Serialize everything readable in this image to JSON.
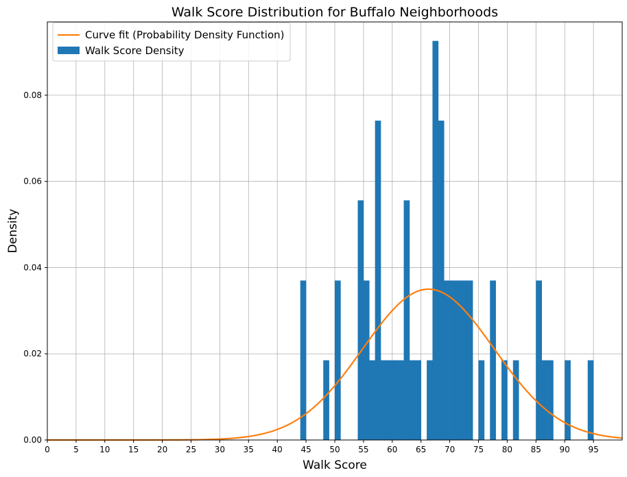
{
  "chart_data": {
    "type": "bar",
    "title": "Walk Score Distribution for Buffalo Neighborhoods",
    "xlabel": "Walk Score",
    "ylabel": "Density",
    "xlim": [
      0,
      100
    ],
    "ylim": [
      0,
      0.097
    ],
    "x_ticks": [
      0,
      5,
      10,
      15,
      20,
      25,
      30,
      35,
      40,
      45,
      50,
      55,
      60,
      65,
      70,
      75,
      80,
      85,
      90,
      95
    ],
    "y_ticks": [
      0.0,
      0.02,
      0.04,
      0.06,
      0.08
    ],
    "y_tick_labels": [
      "0.00",
      "0.02",
      "0.04",
      "0.06",
      "0.08"
    ],
    "grid": true,
    "legend_position": "top-left",
    "colors": {
      "bars": "#1f77b4",
      "curve": "#ff7f0e",
      "grid": "#b0b0b0"
    },
    "series": [
      {
        "name": "Walk Score Density",
        "kind": "histogram",
        "bin_width": 1,
        "bins": [
          {
            "x": 44,
            "density": 0.037
          },
          {
            "x": 48,
            "density": 0.0185
          },
          {
            "x": 50,
            "density": 0.037
          },
          {
            "x": 54,
            "density": 0.0556
          },
          {
            "x": 55,
            "density": 0.037
          },
          {
            "x": 56,
            "density": 0.0185
          },
          {
            "x": 57,
            "density": 0.0741
          },
          {
            "x": 58,
            "density": 0.0185
          },
          {
            "x": 59,
            "density": 0.0185
          },
          {
            "x": 60,
            "density": 0.0185
          },
          {
            "x": 61,
            "density": 0.0185
          },
          {
            "x": 62,
            "density": 0.0556
          },
          {
            "x": 63,
            "density": 0.0185
          },
          {
            "x": 64,
            "density": 0.0185
          },
          {
            "x": 66,
            "density": 0.0185
          },
          {
            "x": 67,
            "density": 0.0926
          },
          {
            "x": 68,
            "density": 0.0741
          },
          {
            "x": 69,
            "density": 0.037
          },
          {
            "x": 70,
            "density": 0.037
          },
          {
            "x": 71,
            "density": 0.037
          },
          {
            "x": 72,
            "density": 0.037
          },
          {
            "x": 73,
            "density": 0.037
          },
          {
            "x": 75,
            "density": 0.0185
          },
          {
            "x": 77,
            "density": 0.037
          },
          {
            "x": 79,
            "density": 0.0185
          },
          {
            "x": 81,
            "density": 0.0185
          },
          {
            "x": 85,
            "density": 0.037
          },
          {
            "x": 86,
            "density": 0.0185
          },
          {
            "x": 87,
            "density": 0.0185
          },
          {
            "x": 90,
            "density": 0.0185
          },
          {
            "x": 94,
            "density": 0.0185
          }
        ]
      },
      {
        "name": "Curve fit (Probability Density Function)",
        "kind": "normal_pdf",
        "mean": 66.3,
        "std": 11.4
      }
    ]
  }
}
